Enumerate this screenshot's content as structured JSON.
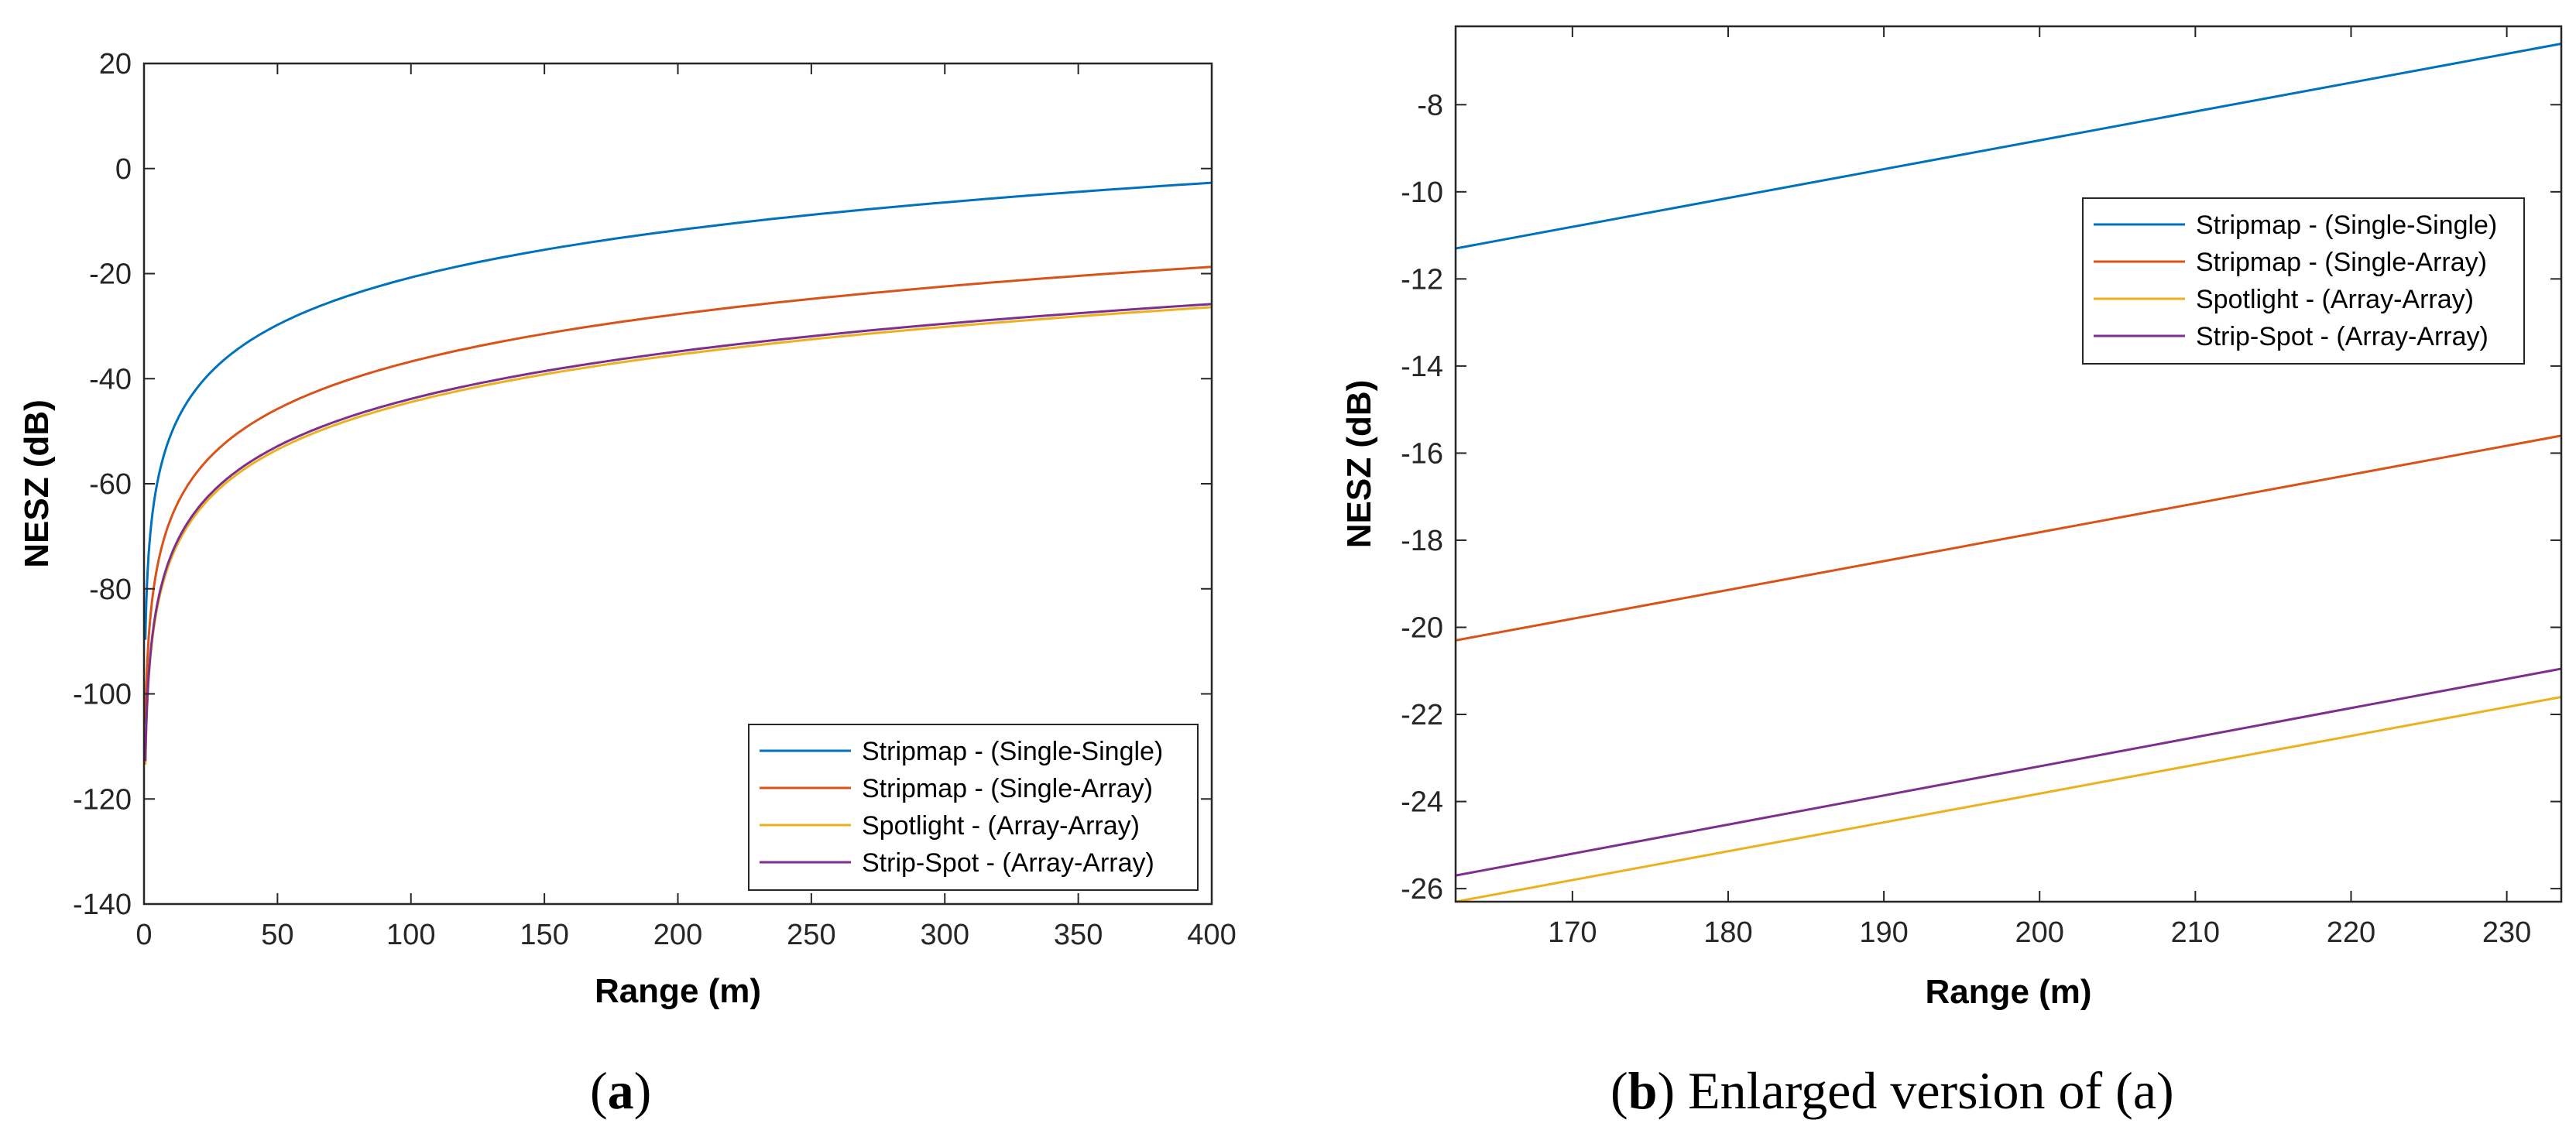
{
  "chart_data": [
    {
      "type": "line",
      "panel": "a",
      "xlabel": "Range (m)",
      "ylabel": "NESZ (dB)",
      "xlim": [
        0,
        400
      ],
      "ylim": [
        -140,
        20
      ],
      "xticks": [
        0,
        50,
        100,
        150,
        200,
        250,
        300,
        350,
        400
      ],
      "yticks": [
        20,
        0,
        -20,
        -40,
        -60,
        -80,
        -100,
        -120,
        -140
      ],
      "legend_position": "bottom-right",
      "series": [
        {
          "name": "Stripmap - (Single-Single)",
          "color": "#0072BD",
          "x": [
            0.5,
            1,
            2,
            3,
            5,
            10,
            20,
            50,
            100,
            150,
            200,
            250,
            300,
            350,
            400
          ],
          "y": [
            -89.7,
            -80.7,
            -71.7,
            -66.4,
            -59.7,
            -50.7,
            -41.7,
            -29.7,
            -20.7,
            -15.4,
            -11.7,
            -8.8,
            -6.4,
            -4.4,
            -2.7
          ]
        },
        {
          "name": "Stripmap - (Single-Array)",
          "color": "#D95319",
          "x": [
            0.5,
            1,
            2,
            3,
            5,
            10,
            20,
            50,
            100,
            150,
            200,
            250,
            300,
            350,
            400
          ],
          "y": [
            -105.7,
            -96.7,
            -87.7,
            -82.4,
            -75.7,
            -66.7,
            -57.7,
            -45.7,
            -36.7,
            -31.4,
            -27.7,
            -24.8,
            -22.4,
            -20.4,
            -18.7
          ]
        },
        {
          "name": "Spotlight - (Array-Array)",
          "color": "#EDB120",
          "x": [
            0.5,
            1,
            2,
            3,
            5,
            10,
            20,
            50,
            100,
            150,
            200,
            250,
            300,
            350,
            400
          ],
          "y": [
            -113.5,
            -104.4,
            -95.5,
            -90.2,
            -83.5,
            -74.4,
            -65.4,
            -53.5,
            -44.4,
            -39.2,
            -35.5,
            -32.6,
            -30.2,
            -28.2,
            -26.4
          ]
        },
        {
          "name": "Strip-Spot - (Array-Array)",
          "color": "#7E2F8E",
          "x": [
            0.5,
            1,
            2,
            3,
            5,
            10,
            20,
            50,
            100,
            150,
            200,
            250,
            300,
            350,
            400
          ],
          "y": [
            -112.8,
            -103.8,
            -94.8,
            -89.5,
            -82.8,
            -73.8,
            -64.8,
            -52.8,
            -43.8,
            -38.5,
            -34.8,
            -31.9,
            -29.5,
            -27.5,
            -25.8
          ]
        }
      ]
    },
    {
      "type": "line",
      "panel": "b",
      "xlabel": "Range (m)",
      "ylabel": "NESZ (dB)",
      "xlim": [
        162.5,
        233.5
      ],
      "ylim": [
        -26.3,
        -6.2
      ],
      "xticks": [
        170,
        180,
        190,
        200,
        210,
        220,
        230
      ],
      "yticks": [
        -8,
        -10,
        -12,
        -14,
        -16,
        -18,
        -20,
        -22,
        -24,
        -26
      ],
      "legend_position": "top-right",
      "series": [
        {
          "name": "Stripmap - (Single-Single)",
          "color": "#0072BD",
          "x": [
            162.5,
            233.5
          ],
          "y": [
            -11.3,
            -6.6
          ]
        },
        {
          "name": "Stripmap - (Single-Array)",
          "color": "#D95319",
          "x": [
            162.5,
            233.5
          ],
          "y": [
            -20.3,
            -15.6
          ]
        },
        {
          "name": "Spotlight - (Array-Array)",
          "color": "#EDB120",
          "x": [
            162.5,
            233.5
          ],
          "y": [
            -26.3,
            -21.6
          ]
        },
        {
          "name": "Strip-Spot - (Array-Array)",
          "color": "#7E2F8E",
          "x": [
            162.5,
            233.5
          ],
          "y": [
            -25.7,
            -20.95
          ]
        }
      ]
    }
  ],
  "captions": {
    "a": {
      "letter": "a",
      "text": ""
    },
    "b": {
      "letter": "b",
      "text": " Enlarged version of (a)"
    }
  }
}
